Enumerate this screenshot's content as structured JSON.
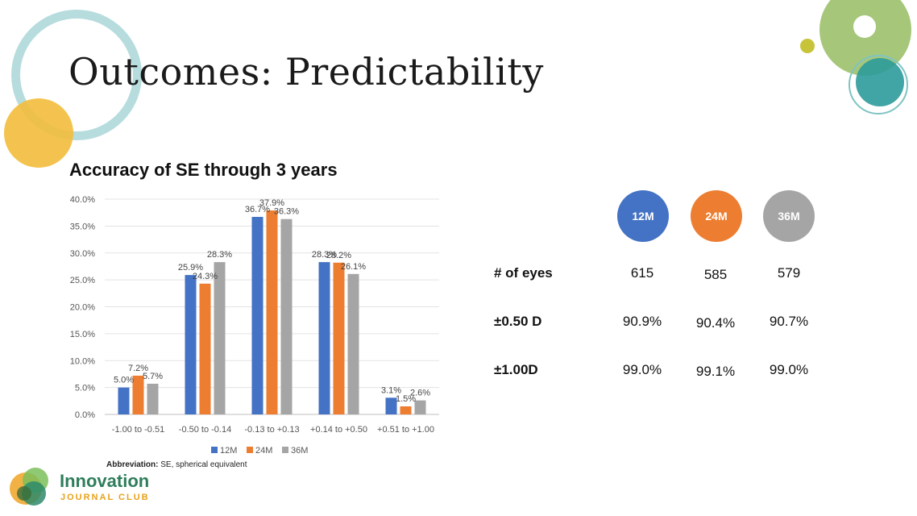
{
  "slide": {
    "title": "Outcomes: Predictability",
    "abbreviation_bold": "Abbreviation:",
    "abbreviation_text": " SE, spherical equivalent"
  },
  "colors": {
    "s12M": "#4472C4",
    "s24M": "#ED7D31",
    "s36M": "#A5A5A5",
    "ring_teal": "#a9d6d8",
    "yellow": "#f3bd3c",
    "green": "#9cc16a",
    "teal": "#2e9b9b",
    "logo_green": "#2e7d5b",
    "logo_orange": "#e8a21a"
  },
  "chart_data": {
    "type": "bar",
    "title": "Accuracy of SE through 3 years",
    "categories": [
      "-1.00 to -0.51",
      "-0.50 to -0.14",
      "-0.13 to +0.13",
      "+0.14 to +0.50",
      "+0.51 to +1.00"
    ],
    "series": [
      {
        "name": "12M",
        "values": [
          5.0,
          25.9,
          36.7,
          28.3,
          3.1
        ],
        "labels": [
          "5.0%",
          "25.9%",
          "36.7%",
          "28.3%",
          "3.1%"
        ]
      },
      {
        "name": "24M",
        "values": [
          7.2,
          24.3,
          37.9,
          28.2,
          1.5
        ],
        "labels": [
          "7.2%",
          "24.3%",
          "37.9%",
          "28.2%",
          "1.5%"
        ]
      },
      {
        "name": "36M",
        "values": [
          5.7,
          28.3,
          36.3,
          26.1,
          2.6
        ],
        "labels": [
          "5.7%",
          "28.3%",
          "36.3%",
          "26.1%",
          "2.6%"
        ]
      }
    ],
    "ylim": [
      0,
      40
    ],
    "yticks": [
      "0.0%",
      "5.0%",
      "10.0%",
      "15.0%",
      "20.0%",
      "25.0%",
      "30.0%",
      "35.0%",
      "40.0%"
    ],
    "grid": true,
    "legend": "bottom"
  },
  "table": {
    "headers": [
      "12M",
      "24M",
      "36M"
    ],
    "rows": [
      {
        "label": "# of eyes",
        "values": [
          "615",
          "585",
          "579"
        ]
      },
      {
        "label": "±0.50 D",
        "values": [
          "90.9%",
          "90.4%",
          "90.7%"
        ]
      },
      {
        "label": "±1.00D",
        "values": [
          "99.0%",
          "99.1%",
          "99.0%"
        ]
      }
    ]
  },
  "logo": {
    "name": "Innovation",
    "subtitle": "JOURNAL CLUB"
  }
}
